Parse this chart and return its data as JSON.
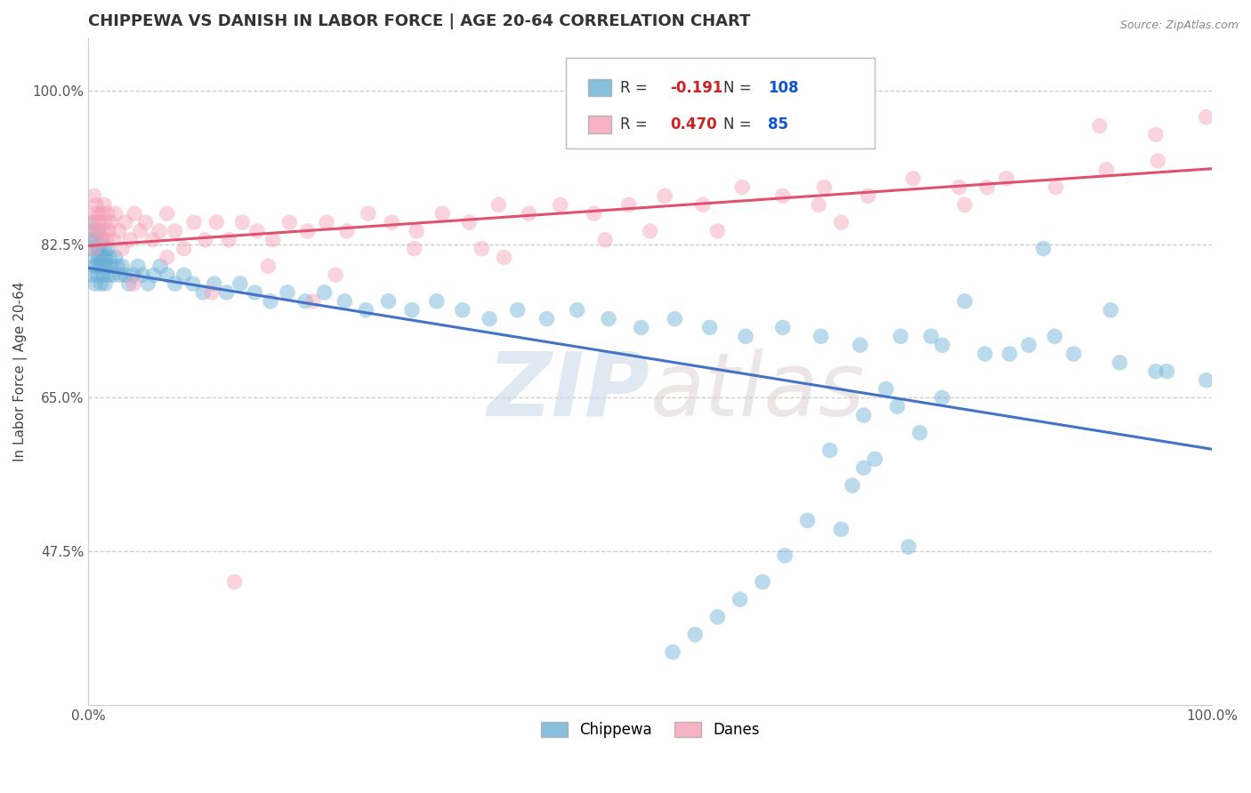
{
  "title": "CHIPPEWA VS DANISH IN LABOR FORCE | AGE 20-64 CORRELATION CHART",
  "source": "Source: ZipAtlas.com",
  "ylabel": "In Labor Force | Age 20-64",
  "xlim": [
    0.0,
    1.0
  ],
  "ylim": [
    0.3,
    1.06
  ],
  "xticks": [
    0.0,
    0.1,
    0.2,
    0.3,
    0.4,
    0.5,
    0.6,
    0.7,
    0.8,
    0.9,
    1.0
  ],
  "xticklabels": [
    "0.0%",
    "",
    "",
    "",
    "",
    "",
    "",
    "",
    "",
    "",
    "100.0%"
  ],
  "ytick_values": [
    0.475,
    0.65,
    0.825,
    1.0
  ],
  "yticklabels": [
    "47.5%",
    "65.0%",
    "82.5%",
    "100.0%"
  ],
  "chippewa_color": "#6aaed6",
  "danish_color": "#f4a0b5",
  "chippewa_line_color": "#4472c4",
  "danish_line_color": "#e05070",
  "chippewa_R": -0.191,
  "chippewa_N": 108,
  "danish_R": 0.47,
  "danish_N": 85,
  "watermark": "ZIPatlas",
  "legend_label_chippewa": "Chippewa",
  "legend_label_danish": "Danes",
  "background_color": "#ffffff",
  "grid_color": "#cccccc",
  "chippewa_x": [
    0.002,
    0.003,
    0.003,
    0.004,
    0.005,
    0.005,
    0.006,
    0.006,
    0.007,
    0.007,
    0.008,
    0.008,
    0.009,
    0.009,
    0.01,
    0.01,
    0.011,
    0.011,
    0.012,
    0.012,
    0.013,
    0.013,
    0.014,
    0.014,
    0.015,
    0.015,
    0.016,
    0.017,
    0.018,
    0.019,
    0.02,
    0.022,
    0.024,
    0.026,
    0.028,
    0.03,
    0.033,
    0.036,
    0.04,
    0.044,
    0.048,
    0.053,
    0.058,
    0.064,
    0.07,
    0.077,
    0.085,
    0.093,
    0.102,
    0.112,
    0.123,
    0.135,
    0.148,
    0.162,
    0.177,
    0.193,
    0.21,
    0.228,
    0.247,
    0.267,
    0.288,
    0.31,
    0.333,
    0.357,
    0.382,
    0.408,
    0.435,
    0.463,
    0.492,
    0.522,
    0.553,
    0.585,
    0.618,
    0.652,
    0.687,
    0.723,
    0.76,
    0.798,
    0.837,
    0.877,
    0.918,
    0.96,
    0.995,
    0.86,
    0.91,
    0.95,
    0.85,
    0.78,
    0.82,
    0.76,
    0.74,
    0.7,
    0.68,
    0.72,
    0.69,
    0.75,
    0.71,
    0.67,
    0.73,
    0.69,
    0.66,
    0.64,
    0.62,
    0.6,
    0.58,
    0.56,
    0.54,
    0.52
  ],
  "chippewa_y": [
    0.83,
    0.82,
    0.79,
    0.85,
    0.8,
    0.84,
    0.81,
    0.78,
    0.83,
    0.8,
    0.82,
    0.79,
    0.81,
    0.84,
    0.8,
    0.82,
    0.81,
    0.78,
    0.8,
    0.83,
    0.79,
    0.81,
    0.8,
    0.82,
    0.81,
    0.78,
    0.8,
    0.82,
    0.79,
    0.81,
    0.8,
    0.79,
    0.81,
    0.8,
    0.79,
    0.8,
    0.79,
    0.78,
    0.79,
    0.8,
    0.79,
    0.78,
    0.79,
    0.8,
    0.79,
    0.78,
    0.79,
    0.78,
    0.77,
    0.78,
    0.77,
    0.78,
    0.77,
    0.76,
    0.77,
    0.76,
    0.77,
    0.76,
    0.75,
    0.76,
    0.75,
    0.76,
    0.75,
    0.74,
    0.75,
    0.74,
    0.75,
    0.74,
    0.73,
    0.74,
    0.73,
    0.72,
    0.73,
    0.72,
    0.71,
    0.72,
    0.71,
    0.7,
    0.71,
    0.7,
    0.69,
    0.68,
    0.67,
    0.72,
    0.75,
    0.68,
    0.82,
    0.76,
    0.7,
    0.65,
    0.61,
    0.58,
    0.55,
    0.64,
    0.57,
    0.72,
    0.66,
    0.5,
    0.48,
    0.63,
    0.59,
    0.51,
    0.47,
    0.44,
    0.42,
    0.4,
    0.38,
    0.36
  ],
  "danish_x": [
    0.003,
    0.004,
    0.005,
    0.005,
    0.006,
    0.007,
    0.008,
    0.009,
    0.01,
    0.011,
    0.012,
    0.013,
    0.014,
    0.015,
    0.016,
    0.017,
    0.018,
    0.02,
    0.022,
    0.024,
    0.027,
    0.03,
    0.033,
    0.037,
    0.041,
    0.046,
    0.051,
    0.057,
    0.063,
    0.07,
    0.077,
    0.085,
    0.094,
    0.104,
    0.114,
    0.125,
    0.137,
    0.15,
    0.164,
    0.179,
    0.195,
    0.212,
    0.23,
    0.249,
    0.27,
    0.292,
    0.315,
    0.339,
    0.365,
    0.392,
    0.42,
    0.45,
    0.481,
    0.513,
    0.547,
    0.582,
    0.618,
    0.655,
    0.694,
    0.734,
    0.775,
    0.817,
    0.861,
    0.906,
    0.952,
    0.995,
    0.04,
    0.07,
    0.11,
    0.16,
    0.22,
    0.29,
    0.37,
    0.46,
    0.56,
    0.67,
    0.78,
    0.9,
    0.2,
    0.35,
    0.5,
    0.65,
    0.8,
    0.95,
    0.13
  ],
  "danish_y": [
    0.84,
    0.86,
    0.82,
    0.88,
    0.85,
    0.87,
    0.84,
    0.86,
    0.85,
    0.83,
    0.86,
    0.84,
    0.87,
    0.85,
    0.83,
    0.86,
    0.84,
    0.85,
    0.83,
    0.86,
    0.84,
    0.82,
    0.85,
    0.83,
    0.86,
    0.84,
    0.85,
    0.83,
    0.84,
    0.86,
    0.84,
    0.82,
    0.85,
    0.83,
    0.85,
    0.83,
    0.85,
    0.84,
    0.83,
    0.85,
    0.84,
    0.85,
    0.84,
    0.86,
    0.85,
    0.84,
    0.86,
    0.85,
    0.87,
    0.86,
    0.87,
    0.86,
    0.87,
    0.88,
    0.87,
    0.89,
    0.88,
    0.89,
    0.88,
    0.9,
    0.89,
    0.9,
    0.89,
    0.91,
    0.92,
    0.97,
    0.78,
    0.81,
    0.77,
    0.8,
    0.79,
    0.82,
    0.81,
    0.83,
    0.84,
    0.85,
    0.87,
    0.96,
    0.76,
    0.82,
    0.84,
    0.87,
    0.89,
    0.95,
    0.44
  ]
}
